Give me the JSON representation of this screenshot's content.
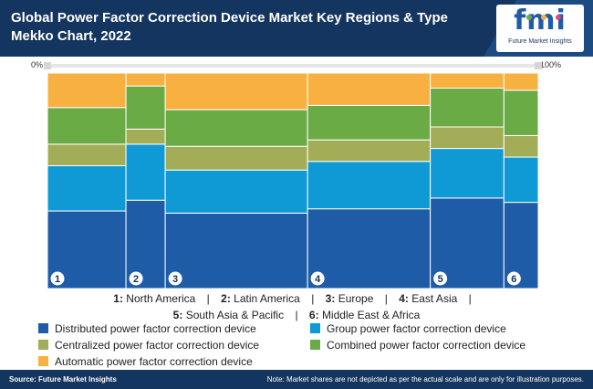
{
  "header": {
    "title": "Global Power Factor Correction Device Market Key Regions & Type Mekko Chart, 2022",
    "logo_text": "fmi",
    "logo_subtitle": "Future Market Insights"
  },
  "colors": {
    "header_bg": "#14355f",
    "distributed": "#1f5ca8",
    "group": "#0f9ad6",
    "centralized": "#a3ad58",
    "combined": "#6aab46",
    "automatic": "#f8b141"
  },
  "chart_data": {
    "type": "mekko",
    "scale_labels": [
      "0%",
      "100%"
    ],
    "regions": [
      {
        "badge": "1",
        "label": "North America",
        "width_share": 16,
        "shares": {
          "distributed": 36,
          "group": 21,
          "centralized": 10,
          "combined": 17,
          "automatic": 16
        }
      },
      {
        "badge": "2",
        "label": "Latin America",
        "width_share": 8,
        "shares": {
          "distributed": 41,
          "group": 26,
          "centralized": 7,
          "combined": 20,
          "automatic": 6
        }
      },
      {
        "badge": "3",
        "label": "Europe",
        "width_share": 29,
        "shares": {
          "distributed": 35,
          "group": 20,
          "centralized": 11,
          "combined": 17,
          "automatic": 17
        }
      },
      {
        "badge": "4",
        "label": "East Asia",
        "width_share": 25,
        "shares": {
          "distributed": 37,
          "group": 22,
          "centralized": 10,
          "combined": 16,
          "automatic": 15
        }
      },
      {
        "badge": "5",
        "label": "South Asia & Pacific",
        "width_share": 15,
        "shares": {
          "distributed": 42,
          "group": 23,
          "centralized": 10,
          "combined": 18,
          "automatic": 7
        }
      },
      {
        "badge": "6",
        "label": "Middle East & Africa",
        "width_share": 7,
        "shares": {
          "distributed": 40,
          "group": 21,
          "centralized": 10,
          "combined": 21,
          "automatic": 8
        }
      }
    ],
    "segment_order": [
      "distributed",
      "group",
      "centralized",
      "combined",
      "automatic"
    ],
    "legend": [
      {
        "key": "distributed",
        "label": "Distributed power factor correction device"
      },
      {
        "key": "group",
        "label": "Group power factor correction device"
      },
      {
        "key": "centralized",
        "label": "Centralized power factor correction device"
      },
      {
        "key": "combined",
        "label": "Combined power factor correction device"
      },
      {
        "key": "automatic",
        "label": "Automatic power factor correction device"
      }
    ]
  },
  "footer": {
    "source": "Source: Future Market Insights",
    "note": "Note: Market shares are not depicted as per the actual scale and are only for illustration purposes."
  }
}
